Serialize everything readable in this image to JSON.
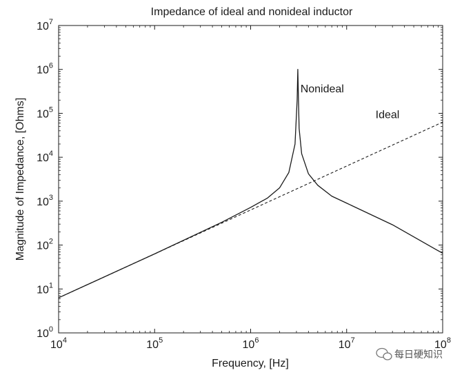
{
  "chart_data": {
    "type": "line",
    "title": "Impedance of ideal and nonideal inductor",
    "xlabel": "Frequency, [Hz]",
    "ylabel": "Magnitude of Impedance, [Ohms]",
    "x_scale": "log",
    "y_scale": "log",
    "xlim": [
      10000,
      100000000
    ],
    "ylim": [
      1,
      10000000
    ],
    "x_ticks": [
      {
        "base": "10",
        "exp": "4",
        "value": 10000
      },
      {
        "base": "10",
        "exp": "5",
        "value": 100000
      },
      {
        "base": "10",
        "exp": "6",
        "value": 1000000
      },
      {
        "base": "10",
        "exp": "7",
        "value": 10000000
      },
      {
        "base": "10",
        "exp": "8",
        "value": 100000000
      }
    ],
    "y_ticks": [
      {
        "base": "10",
        "exp": "0",
        "value": 1
      },
      {
        "base": "10",
        "exp": "1",
        "value": 10
      },
      {
        "base": "10",
        "exp": "2",
        "value": 100
      },
      {
        "base": "10",
        "exp": "3",
        "value": 1000
      },
      {
        "base": "10",
        "exp": "4",
        "value": 10000
      },
      {
        "base": "10",
        "exp": "5",
        "value": 100000
      },
      {
        "base": "10",
        "exp": "6",
        "value": 1000000
      },
      {
        "base": "10",
        "exp": "7",
        "value": 10000000
      }
    ],
    "grid": false,
    "series": [
      {
        "name": "Nonideal",
        "style": "solid",
        "color": "#1a1a1a",
        "x": [
          10000,
          100000,
          500000,
          1000000,
          1500000,
          2000000,
          2500000,
          2900000,
          3050000,
          3100000,
          3150000,
          3200000,
          3400000,
          4000000,
          5000000,
          7000000,
          10000000,
          30000000,
          100000000
        ],
        "y": [
          6.3,
          63,
          330,
          720,
          1180,
          2000,
          4500,
          20000,
          200000,
          1000000,
          200000,
          45000,
          12000,
          4200,
          2300,
          1300,
          900,
          290,
          65
        ]
      },
      {
        "name": "Ideal",
        "style": "dashed",
        "color": "#1a1a1a",
        "x": [
          10000,
          100000000
        ],
        "y": [
          6.3,
          63000
        ]
      }
    ],
    "annotations": [
      {
        "text": "Nonideal",
        "x": 3300000,
        "y": 300000
      },
      {
        "text": "Ideal",
        "x": 20000000,
        "y": 78000
      }
    ]
  },
  "watermark": {
    "text": "每日硬知识",
    "icon": "wechat-icon"
  }
}
